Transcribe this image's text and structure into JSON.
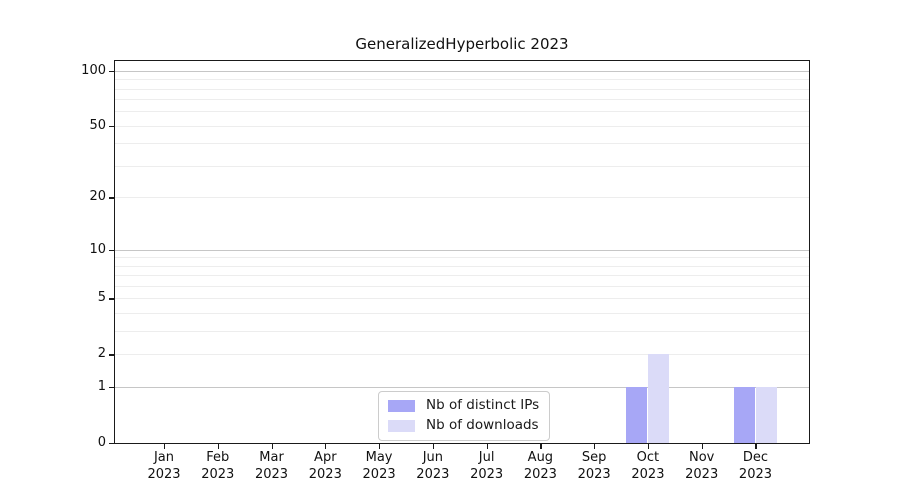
{
  "chart_data": {
    "type": "bar",
    "title": "GeneralizedHyperbolic 2023",
    "categories": [
      "Jan 2023",
      "Feb 2023",
      "Mar 2023",
      "Apr 2023",
      "May 2023",
      "Jun 2023",
      "Jul 2023",
      "Aug 2023",
      "Sep 2023",
      "Oct 2023",
      "Nov 2023",
      "Dec 2023"
    ],
    "series": [
      {
        "name": "Nb of distinct IPs",
        "color": "#a7a7f6",
        "values": [
          0,
          0,
          0,
          0,
          0,
          0,
          0,
          0,
          0,
          1,
          0,
          1
        ]
      },
      {
        "name": "Nb of downloads",
        "color": "#dbdbf8",
        "values": [
          0,
          0,
          0,
          0,
          0,
          0,
          0,
          0,
          0,
          2,
          0,
          1
        ]
      }
    ],
    "xlabel": "",
    "ylabel": "",
    "yscale": "log1p",
    "ylim": [
      0,
      113
    ],
    "yticks": [
      0,
      1,
      2,
      5,
      10,
      20,
      50,
      100
    ],
    "major_gridlines": [
      1,
      10,
      100
    ],
    "minor_gridlines": [
      2,
      3,
      4,
      5,
      6,
      7,
      8,
      9,
      20,
      30,
      40,
      50,
      60,
      70,
      80,
      90
    ],
    "grid": true,
    "legend_position": "lower center"
  },
  "colors": {
    "distinct_ips_bar": "#a7a7f6",
    "downloads_bar": "#dbdbf8",
    "major_grid": "#c6c6c6",
    "minor_grid": "#ededed",
    "axis": "#1a1a1a"
  }
}
